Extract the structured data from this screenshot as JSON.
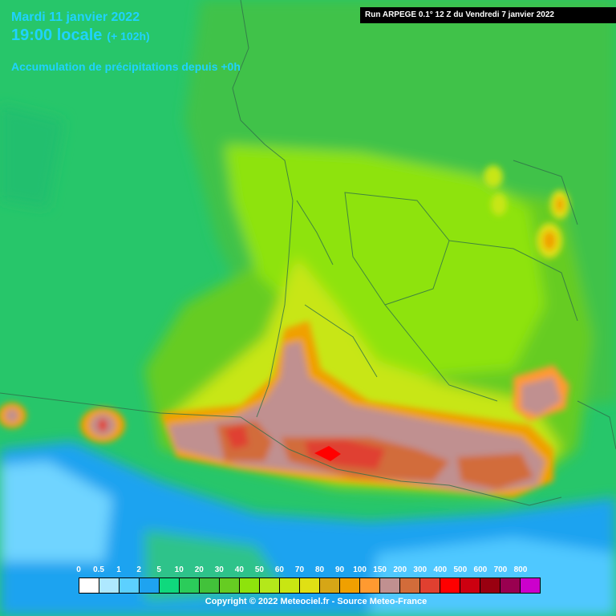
{
  "header": {
    "date": "Mardi 11 janvier 2022",
    "time": "19:00 locale",
    "lead": "(+ 102h)",
    "description": "Accumulation de précipitations depuis +0h",
    "run": "Run ARPEGE 0.1° 12 Z du Vendredi 7 janvier 2022"
  },
  "legend": {
    "labels": [
      "0",
      "0.5",
      "1",
      "2",
      "5",
      "10",
      "20",
      "30",
      "40",
      "50",
      "60",
      "70",
      "80",
      "90",
      "100",
      "150",
      "200",
      "300",
      "400",
      "500",
      "600",
      "700",
      "800"
    ],
    "colors": [
      "#ffffff",
      "#aee8ff",
      "#5cd0ff",
      "#1ea3f0",
      "#0fd97d",
      "#2bcc5a",
      "#42c23a",
      "#66cc22",
      "#8ee30c",
      "#b4e81a",
      "#c8e612",
      "#e0e014",
      "#d6a616",
      "#f0a000",
      "#ff9a30",
      "#c09090",
      "#d26c3a",
      "#e04030",
      "#ff0000",
      "#cc0010",
      "#990010",
      "#990050",
      "#cc00cc"
    ]
  },
  "copyright": "Copyright © 2022 Meteociel.fr - Source Meteo-France",
  "map": {
    "region": "Sud-Ouest de la France et Pyrénées"
  }
}
